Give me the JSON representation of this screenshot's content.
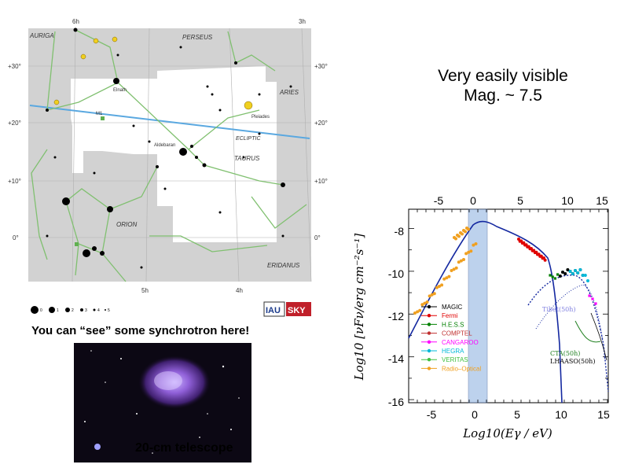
{
  "headline": {
    "line1": "Very easily visible",
    "line2": "Mag. ~ 7.5"
  },
  "caption": "You can “see” some synchrotron here!",
  "photo": {
    "label": "20-cm telescope"
  },
  "starmap": {
    "ra_labels": [
      "6h",
      "5h",
      "4h",
      "3h"
    ],
    "dec_labels": [
      "+30°",
      "+20°",
      "+10°",
      "0°"
    ],
    "constellations": [
      "AURIGA",
      "PERSEUS",
      "ARIES",
      "TAURUS",
      "ORION",
      "ERIDANUS"
    ],
    "ecliptic_label": "ECLIPTIC",
    "star_labels": [
      "Elnath",
      "Pleiades",
      "Aldebaran",
      "M1"
    ],
    "legend_magnitudes": [
      "0",
      "1",
      "2",
      "3",
      "4",
      "5"
    ],
    "logos": [
      "IAU",
      "SKY"
    ]
  },
  "sed_chart": {
    "x_axis_top_ticks": [
      "-5",
      "0",
      "5",
      "10",
      "15"
    ],
    "x_axis_bottom_ticks": [
      "-5",
      "0",
      "5",
      "10",
      "15"
    ],
    "y_ticks": [
      "-8",
      "-10",
      "-12",
      "-14",
      "-16"
    ],
    "xlabel": "Log10(Eγ / eV)",
    "ylabel": "Log10 [νFν/erg cm⁻²s⁻¹]",
    "legend": [
      "MAGIC",
      "Fermi",
      "H.E.S.S",
      "COMPTEL",
      "CANGAROO",
      "HEGRA",
      "VERITAS",
      "Radio–Optical"
    ],
    "annotations": [
      "Tibet(50h)",
      "CTA(50h)",
      "LHAASO(50h)"
    ],
    "series_colors": {
      "MAGIC": "#000000",
      "Fermi": "#e00000",
      "H.E.S.S": "#008000",
      "COMPTEL": "#c03030",
      "CANGAROO": "#ff00ff",
      "HEGRA": "#00b8d8",
      "VERITAS": "#40c040",
      "Radio–Optical": "#f0a020"
    }
  }
}
